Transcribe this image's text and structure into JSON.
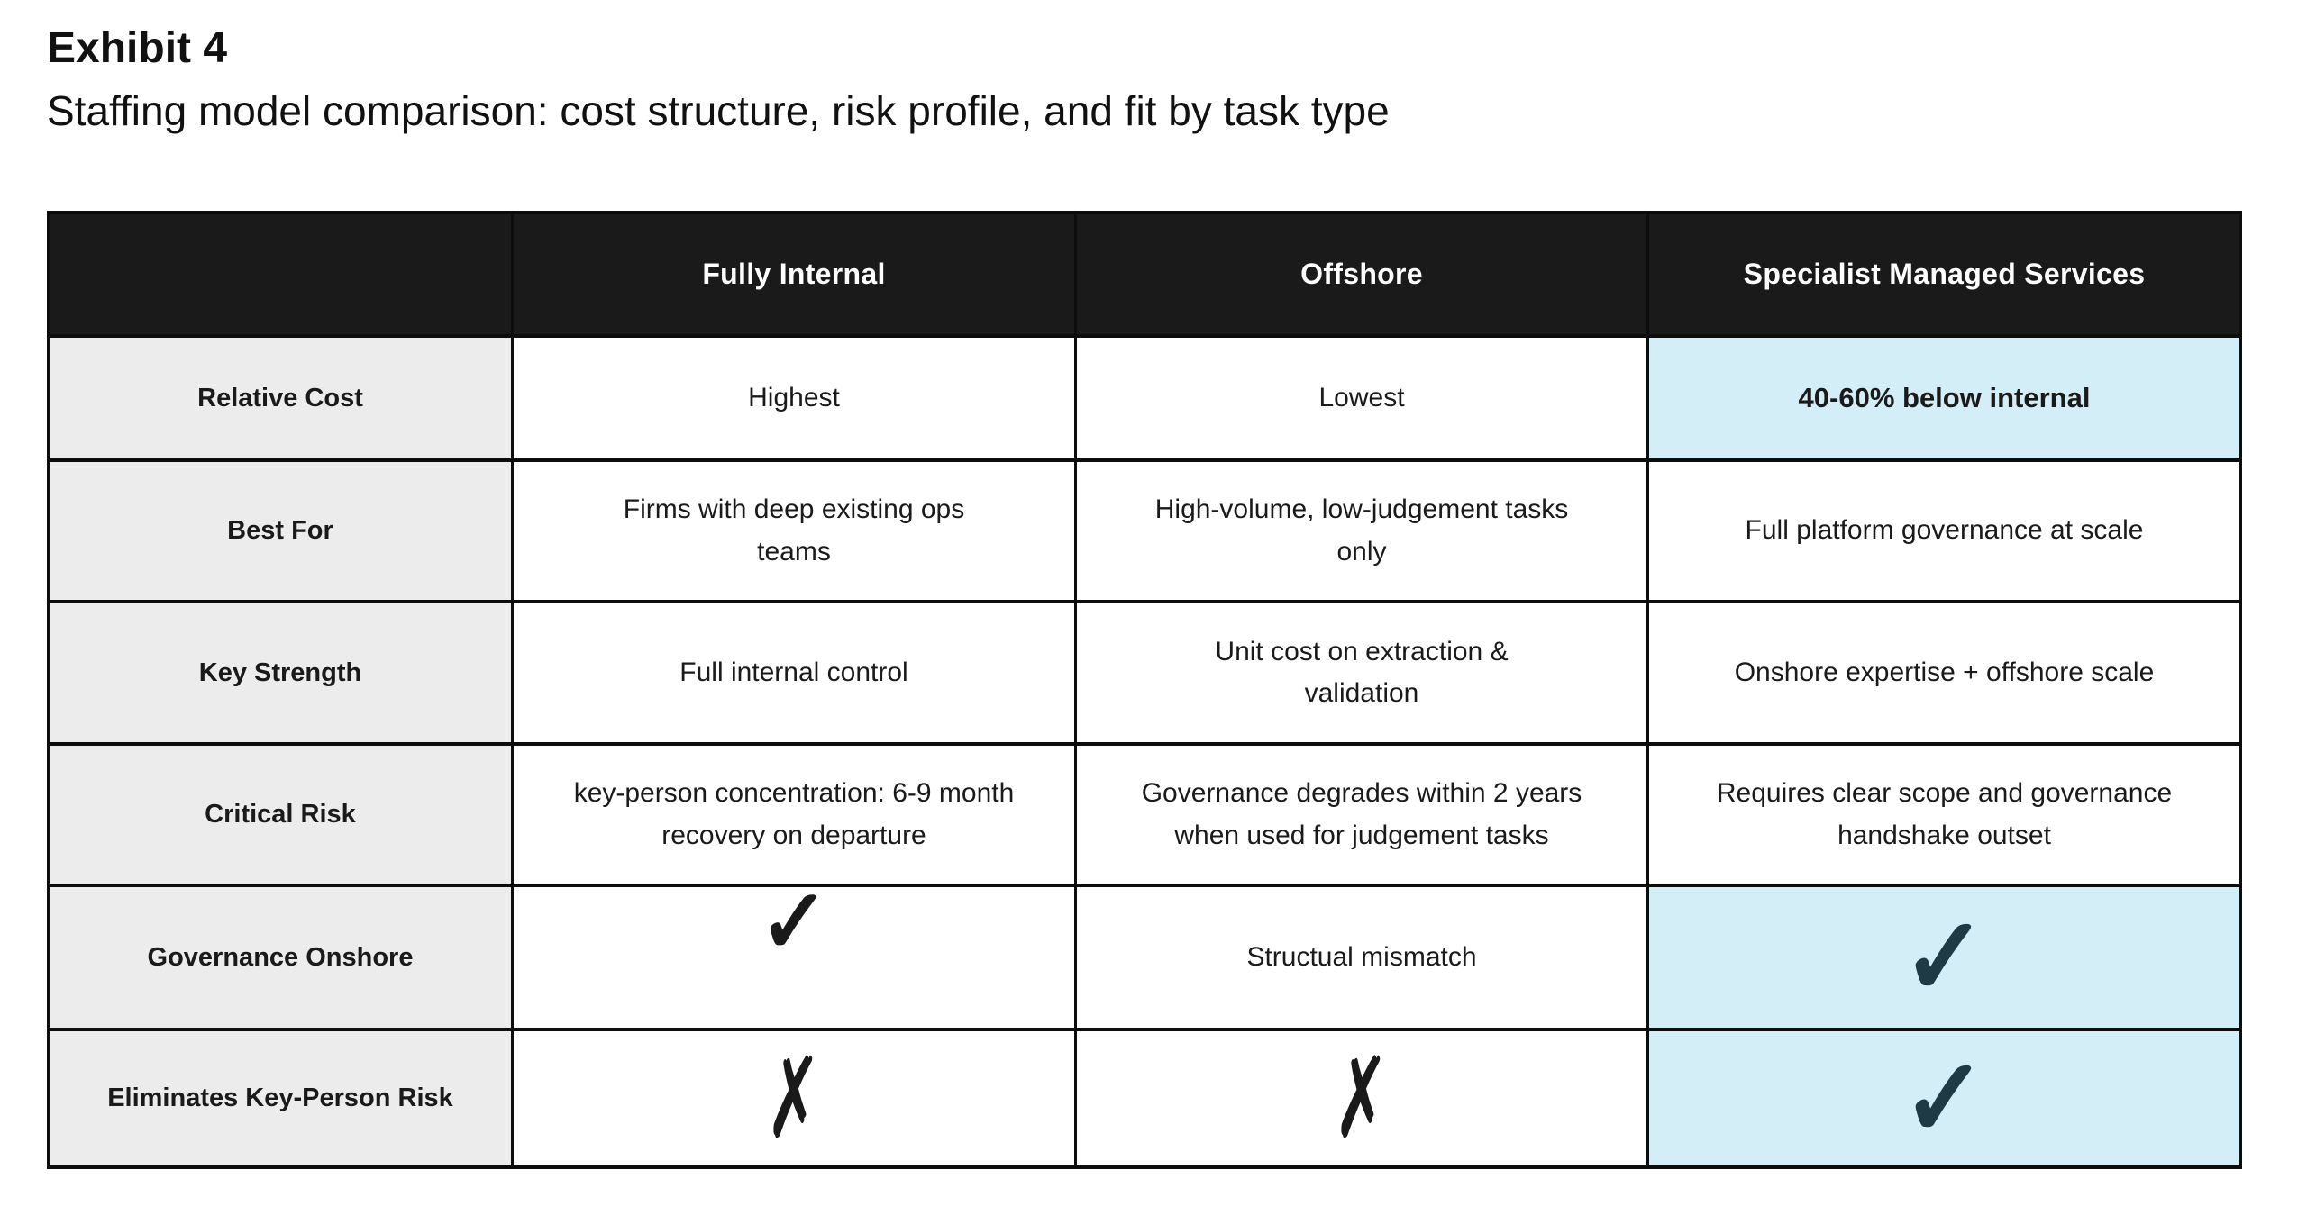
{
  "title": "Exhibit 4",
  "subtitle": "Staffing model comparison: cost structure, risk profile, and fit by task type",
  "table": {
    "header": {
      "row_label": "",
      "fully_internal": "Fully Internal",
      "offshore": "Offshore",
      "specialist": "Specialist Managed Services"
    },
    "rows": {
      "relative_cost": {
        "label": "Relative Cost",
        "fully_internal": "Highest",
        "offshore": "Lowest",
        "specialist": "40-60% below internal"
      },
      "best_for": {
        "label": "Best For",
        "fully_internal": "Firms with deep existing ops\nteams",
        "offshore": "High-volume, low-judgement tasks\nonly",
        "specialist": "Full platform governance at scale"
      },
      "key_strength": {
        "label": "Key Strength",
        "fully_internal": "Full internal control",
        "offshore": "Unit cost on extraction &\nvalidation",
        "specialist": "Onshore expertise + offshore scale"
      },
      "critical_risk": {
        "label": "Critical Risk",
        "fully_internal": "key-person concentration: 6-9 month\nrecovery on departure",
        "offshore": "Governance degrades within 2 years\nwhen used for judgement tasks",
        "specialist": "Requires clear scope and governance\nhandshake outset"
      },
      "governance_onshore": {
        "label": "Governance Onshore",
        "fully_internal": "✓",
        "offshore": "Structual mismatch",
        "specialist": "✓"
      },
      "eliminates_key_person_risk": {
        "label": "Eliminates Key-Person Risk",
        "fully_internal": "✗",
        "offshore": "✗",
        "specialist": "✓"
      }
    }
  },
  "icons": {
    "check": "✓",
    "cross": "✗"
  },
  "colors": {
    "header_bg": "#1a1a1a",
    "header_text": "#ffffff",
    "label_column_bg": "#ececec",
    "highlight_bg": "#d3eef6",
    "check_teal": "#1e3a44",
    "ink": "#1a1a1a"
  }
}
